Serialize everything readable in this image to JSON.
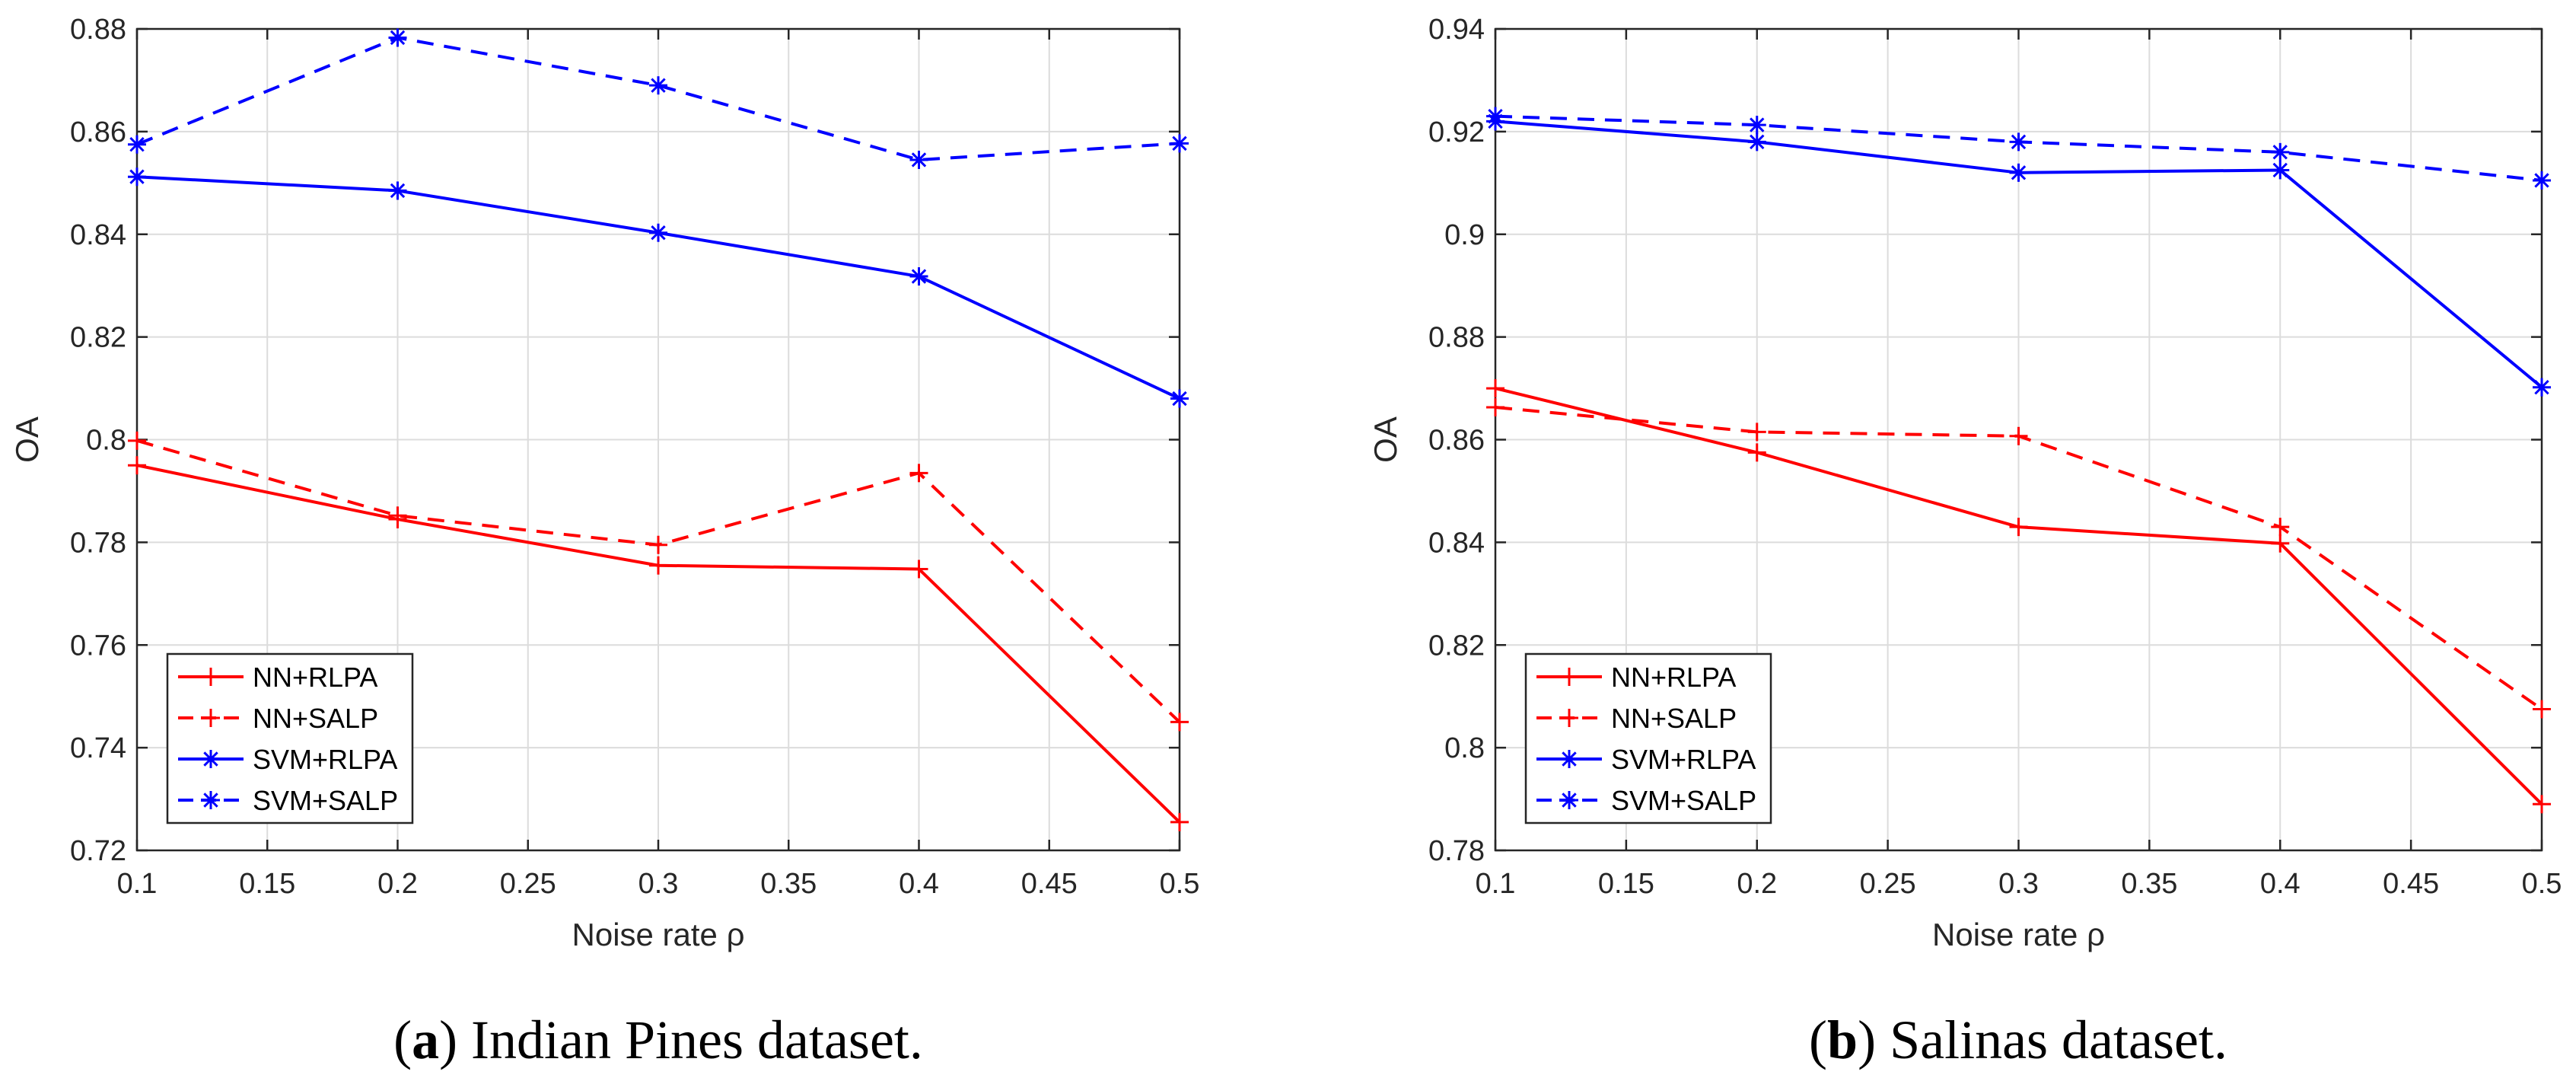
{
  "chart_data": [
    {
      "type": "line",
      "id": "a",
      "caption_label": "a",
      "caption_text": " Indian Pines dataset.",
      "xlabel": "Noise rate ρ",
      "ylabel": "OA",
      "xlim": [
        0.1,
        0.5
      ],
      "ylim": [
        0.72,
        0.88
      ],
      "xticks": [
        0.1,
        0.15,
        0.2,
        0.25,
        0.3,
        0.35,
        0.4,
        0.45,
        0.5
      ],
      "xtick_labels": [
        "0.1",
        "0.15",
        "0.2",
        "0.25",
        "0.3",
        "0.35",
        "0.4",
        "0.45",
        "0.5"
      ],
      "yticks": [
        0.72,
        0.74,
        0.76,
        0.78,
        0.8,
        0.82,
        0.84,
        0.86,
        0.88
      ],
      "ytick_labels": [
        "0.72",
        "0.74",
        "0.76",
        "0.78",
        "0.8",
        "0.82",
        "0.84",
        "0.86",
        "0.88"
      ],
      "grid": true,
      "legend_position": "bottom-left",
      "x": [
        0.1,
        0.2,
        0.3,
        0.4,
        0.5
      ],
      "series": [
        {
          "name": "NN+RLPA",
          "color": "#ff0000",
          "dash": "solid",
          "marker": "plus",
          "values": [
            0.795,
            0.7845,
            0.7755,
            0.7748,
            0.7255
          ]
        },
        {
          "name": "NN+SALP",
          "color": "#ff0000",
          "dash": "dashed",
          "marker": "plus",
          "values": [
            0.7998,
            0.7852,
            0.7795,
            0.7935,
            0.745
          ]
        },
        {
          "name": "SVM+RLPA",
          "color": "#0000ff",
          "dash": "solid",
          "marker": "asterisk",
          "values": [
            0.8512,
            0.8485,
            0.8403,
            0.8318,
            0.808
          ]
        },
        {
          "name": "SVM+SALP",
          "color": "#0000ff",
          "dash": "dashed",
          "marker": "asterisk",
          "values": [
            0.8575,
            0.8783,
            0.869,
            0.8545,
            0.8577
          ]
        }
      ]
    },
    {
      "type": "line",
      "id": "b",
      "caption_label": "b",
      "caption_text": " Salinas dataset.",
      "xlabel": "Noise rate ρ",
      "ylabel": "OA",
      "xlim": [
        0.1,
        0.5
      ],
      "ylim": [
        0.78,
        0.94
      ],
      "xticks": [
        0.1,
        0.15,
        0.2,
        0.25,
        0.3,
        0.35,
        0.4,
        0.45,
        0.5
      ],
      "xtick_labels": [
        "0.1",
        "0.15",
        "0.2",
        "0.25",
        "0.3",
        "0.35",
        "0.4",
        "0.45",
        "0.5"
      ],
      "yticks": [
        0.78,
        0.8,
        0.82,
        0.84,
        0.86,
        0.88,
        0.9,
        0.92,
        0.94
      ],
      "ytick_labels": [
        "0.78",
        "0.8",
        "0.82",
        "0.84",
        "0.86",
        "0.88",
        "0.9",
        "0.92",
        "0.94"
      ],
      "grid": true,
      "legend_position": "bottom-left",
      "x": [
        0.1,
        0.2,
        0.3,
        0.4,
        0.5
      ],
      "series": [
        {
          "name": "NN+RLPA",
          "color": "#ff0000",
          "dash": "solid",
          "marker": "plus",
          "values": [
            0.87,
            0.8575,
            0.843,
            0.8398,
            0.789
          ]
        },
        {
          "name": "NN+SALP",
          "color": "#ff0000",
          "dash": "dashed",
          "marker": "plus",
          "values": [
            0.8663,
            0.8615,
            0.8607,
            0.843,
            0.8075
          ]
        },
        {
          "name": "SVM+RLPA",
          "color": "#0000ff",
          "dash": "solid",
          "marker": "asterisk",
          "values": [
            0.922,
            0.918,
            0.912,
            0.9125,
            0.8702
          ]
        },
        {
          "name": "SVM+SALP",
          "color": "#0000ff",
          "dash": "dashed",
          "marker": "asterisk",
          "values": [
            0.923,
            0.9213,
            0.918,
            0.916,
            0.9105
          ]
        }
      ]
    }
  ]
}
